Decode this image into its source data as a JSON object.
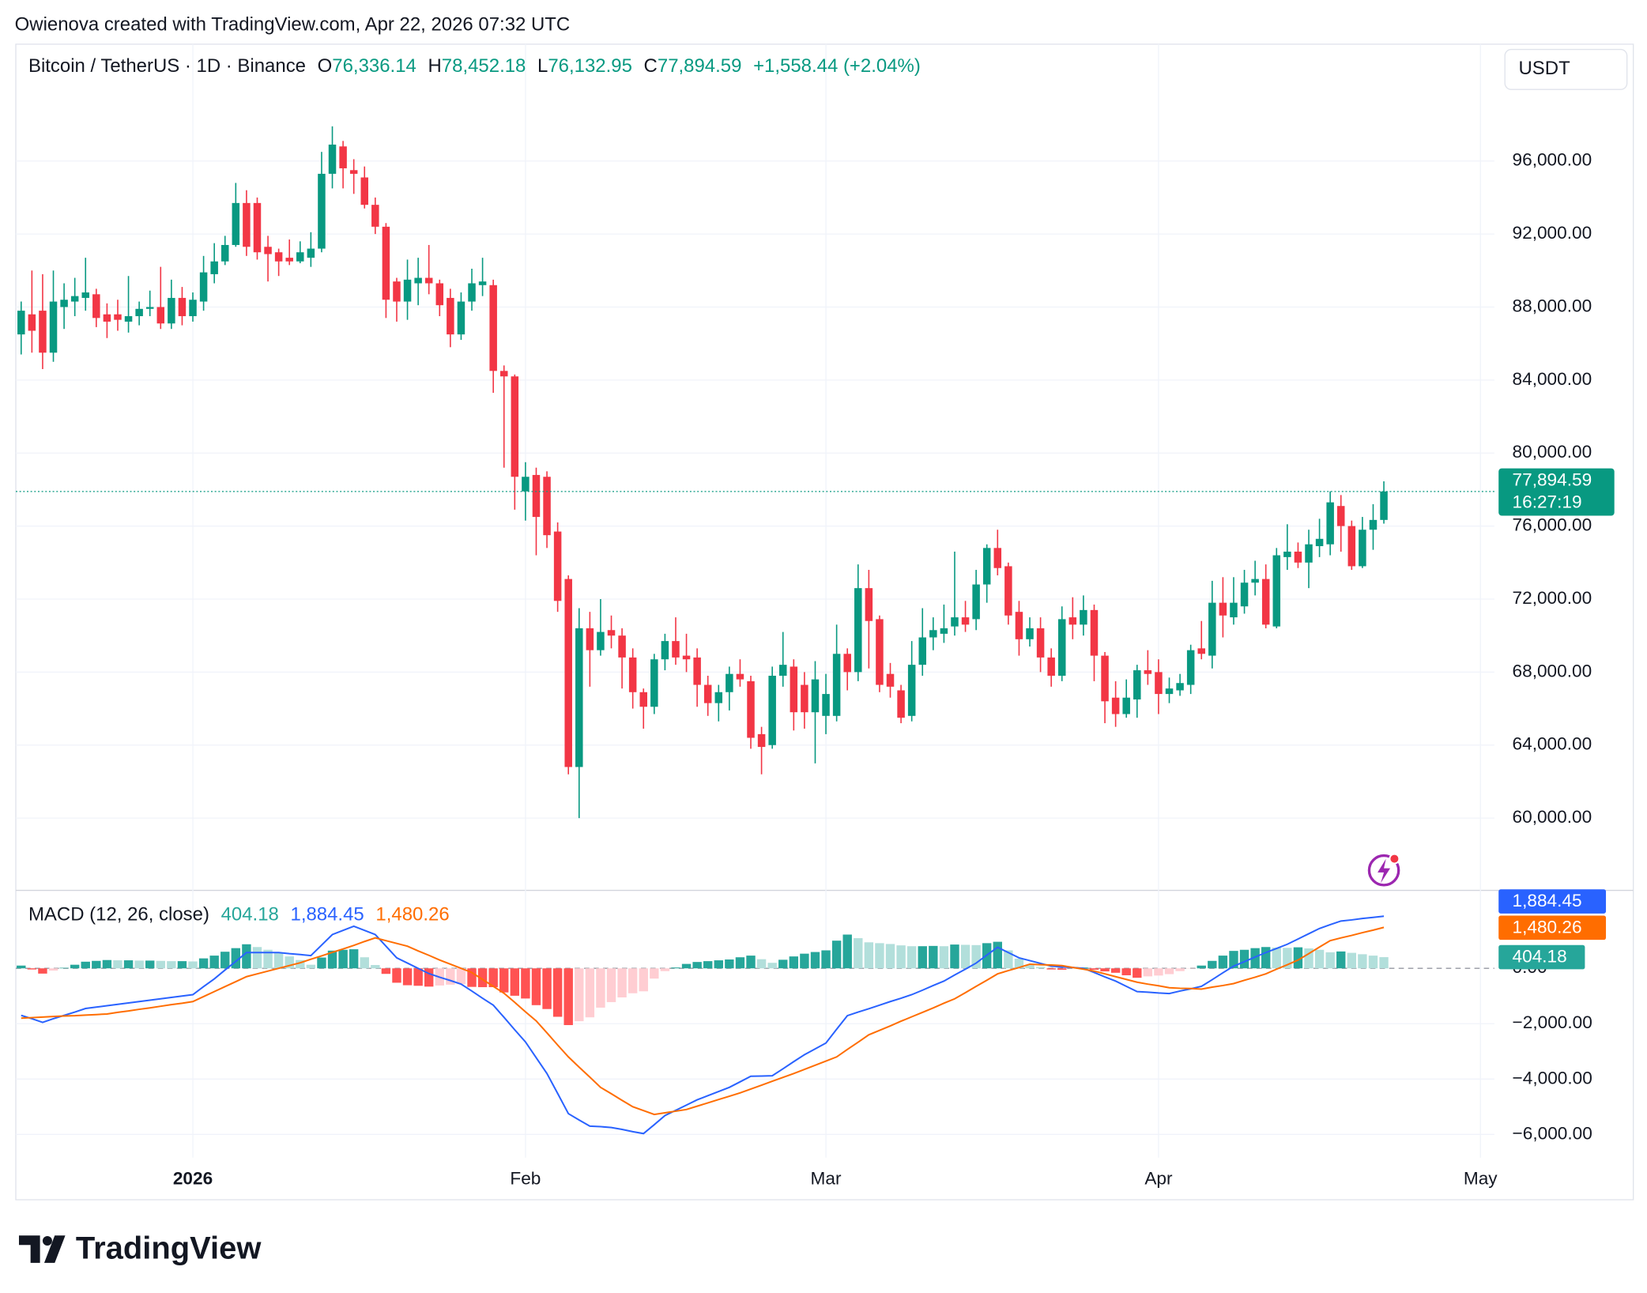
{
  "header": {
    "attribution": "Owienova created with TradingView.com, Apr 22, 2026 07:32 UTC"
  },
  "footer": {
    "logo": "TradingView"
  },
  "chart_data": [
    {
      "type": "candlestick",
      "title": "Bitcoin / TetherUS · 1D · Binance",
      "ohlc_legend": [
        {
          "key": "O",
          "value": "76,336.14"
        },
        {
          "key": "H",
          "value": "78,452.18"
        },
        {
          "key": "L",
          "value": "76,132.95"
        },
        {
          "key": "C",
          "value": "77,894.59"
        }
      ],
      "change_label": "+1,558.44 (+2.04%)",
      "currency": "USDT",
      "last_price_label": "77,894.59",
      "countdown": "16:27:19",
      "up_color": "#089981",
      "down_color": "#f23645",
      "grid": true,
      "xlim": [
        -0.5,
        137.3
      ],
      "xticks": [
        {
          "value": 16,
          "label": "2026",
          "bold": true
        },
        {
          "value": 47,
          "label": "Feb"
        },
        {
          "value": 75,
          "label": "Mar"
        },
        {
          "value": 106,
          "label": "Apr"
        },
        {
          "value": 136,
          "label": "May"
        }
      ],
      "ylim": [
        56100,
        102400
      ],
      "yticks": [
        {
          "value": 60000,
          "label": "60,000.00"
        },
        {
          "value": 64000,
          "label": "64,000.00"
        },
        {
          "value": 68000,
          "label": "68,000.00"
        },
        {
          "value": 72000,
          "label": "72,000.00"
        },
        {
          "value": 76000,
          "label": "76,000.00"
        },
        {
          "value": 80000,
          "label": "80,000.00"
        },
        {
          "value": 84000,
          "label": "84,000.00"
        },
        {
          "value": 88000,
          "label": "88,000.00"
        },
        {
          "value": 92000,
          "label": "92,000.00"
        },
        {
          "value": 96000,
          "label": "96,000.00"
        }
      ],
      "open": [
        86500,
        87600,
        87800,
        85500,
        88000,
        88300,
        88500,
        88700,
        87600,
        87600,
        87200,
        87500,
        87900,
        88000,
        87100,
        88500,
        87500,
        88300,
        89800,
        90500,
        91400,
        93700,
        93700,
        91300,
        91000,
        90700,
        90500,
        90700,
        91200,
        95300,
        96800,
        95500,
        95100,
        93600,
        92400,
        89400,
        88300,
        89300,
        89600,
        89300,
        88500,
        86500,
        88300,
        89200,
        89200,
        84500,
        84200,
        77900,
        78800,
        78700,
        75700,
        73100,
        62800,
        70400,
        69200,
        70300,
        70000,
        68800,
        66900,
        66100,
        68700,
        69700,
        68900,
        68800,
        67300,
        66300,
        66900,
        67900,
        67500,
        64600,
        64000,
        67800,
        68300,
        67300,
        65800,
        65600,
        65600,
        69000,
        68000,
        72600,
        70900,
        67900,
        67000,
        65600,
        68400,
        69900,
        70100,
        70500,
        71000,
        70900,
        72800,
        74800,
        73800,
        71300,
        69800,
        70400,
        68800,
        67800,
        71000,
        70600,
        71400,
        68900,
        66600,
        65700,
        66500,
        68100,
        68000,
        66800,
        67000,
        67300,
        69300,
        68900,
        71800,
        71000,
        71600,
        72900,
        73100,
        70500,
        74300,
        74600,
        74000,
        74900,
        75000,
        77100,
        76000,
        73800,
        75800,
        76336.14
      ],
      "high": [
        88300,
        90000,
        89800,
        90000,
        89300,
        89600,
        90700,
        89000,
        88200,
        88400,
        89700,
        88300,
        88900,
        90200,
        89500,
        89100,
        88800,
        90800,
        91500,
        91900,
        94800,
        94400,
        94000,
        91900,
        91200,
        91700,
        91600,
        92100,
        96500,
        97900,
        97100,
        96100,
        95700,
        94000,
        92600,
        89600,
        90600,
        90700,
        91400,
        89500,
        89000,
        88800,
        90100,
        90700,
        89500,
        84800,
        84300,
        79500,
        79200,
        79000,
        76200,
        73300,
        71500,
        71300,
        72000,
        71100,
        70400,
        69300,
        67100,
        69000,
        70100,
        71000,
        70100,
        69300,
        67800,
        67300,
        68300,
        68700,
        67800,
        65000,
        68300,
        70200,
        68700,
        68000,
        68600,
        67900,
        70600,
        69300,
        73900,
        73600,
        71100,
        68500,
        67300,
        69700,
        71500,
        71000,
        71700,
        74600,
        71900,
        73600,
        75000,
        75800,
        74000,
        71900,
        71000,
        71000,
        69300,
        71600,
        72100,
        72200,
        71700,
        69100,
        67500,
        67600,
        68400,
        69200,
        68700,
        67700,
        67900,
        69500,
        70800,
        73000,
        73200,
        73200,
        73600,
        74100,
        73900,
        74800,
        76100,
        75100,
        75800,
        76400,
        77900,
        77700,
        76300,
        76500,
        77200,
        78452.18
      ],
      "low": [
        85400,
        85500,
        84600,
        85000,
        86800,
        87500,
        87800,
        86900,
        86300,
        86700,
        86600,
        87000,
        87500,
        86800,
        86800,
        87000,
        87200,
        87800,
        89300,
        90300,
        91300,
        90800,
        90600,
        89400,
        89700,
        90300,
        90400,
        90200,
        91000,
        94500,
        94500,
        94200,
        93400,
        92000,
        87400,
        87200,
        87300,
        88100,
        88700,
        87500,
        85800,
        86200,
        87800,
        88600,
        83300,
        79200,
        76900,
        76300,
        74400,
        74800,
        71300,
        62400,
        60000,
        67200,
        68900,
        69300,
        67100,
        66000,
        64900,
        65700,
        68100,
        68400,
        68000,
        66100,
        65600,
        65300,
        65900,
        67200,
        63800,
        62400,
        63800,
        67200,
        64800,
        64900,
        63000,
        64600,
        65300,
        67000,
        67500,
        68200,
        66900,
        66600,
        65200,
        65300,
        67800,
        69200,
        69600,
        70000,
        70200,
        70300,
        71800,
        73300,
        70600,
        68900,
        69400,
        68000,
        67200,
        67500,
        69800,
        70000,
        67500,
        65200,
        65000,
        65500,
        65500,
        67300,
        65700,
        66300,
        66700,
        66800,
        68700,
        68200,
        69900,
        70600,
        71200,
        72200,
        70400,
        70400,
        73600,
        73700,
        72600,
        74300,
        74400,
        74600,
        73600,
        73700,
        74700,
        76132.95
      ],
      "close": [
        87800,
        86700,
        85500,
        88300,
        88400,
        88600,
        88800,
        87400,
        87200,
        87300,
        87500,
        87900,
        88000,
        87100,
        88500,
        87500,
        88400,
        89900,
        90500,
        91400,
        93700,
        91300,
        91000,
        90900,
        90500,
        90500,
        91000,
        91200,
        95300,
        96900,
        95600,
        95300,
        93600,
        92400,
        88400,
        88300,
        89500,
        89600,
        89300,
        88100,
        86500,
        88300,
        89300,
        89400,
        84500,
        84200,
        78700,
        78700,
        76500,
        75500,
        71900,
        62800,
        70400,
        69200,
        70200,
        70000,
        68800,
        66900,
        66100,
        68700,
        69700,
        68800,
        68700,
        67300,
        66300,
        66900,
        67900,
        67600,
        64400,
        63900,
        67800,
        68400,
        65800,
        65800,
        67600,
        66800,
        69000,
        68000,
        72600,
        70800,
        67300,
        67200,
        65500,
        68400,
        69900,
        70300,
        70400,
        71000,
        70600,
        72800,
        74800,
        73700,
        71100,
        69800,
        70400,
        68800,
        67800,
        70900,
        70600,
        71400,
        68900,
        66400,
        65700,
        66600,
        68100,
        67900,
        66800,
        67100,
        67400,
        69200,
        69000,
        71800,
        71100,
        71800,
        72900,
        73100,
        70600,
        74400,
        74600,
        74000,
        75000,
        75300,
        77300,
        76000,
        73800,
        75800,
        76336,
        77894.59
      ]
    },
    {
      "type": "macd",
      "title": "MACD (12, 26, close)",
      "histogram_label": "404.18",
      "macd_label": "1,884.45",
      "signal_label": "1,480.26",
      "macd_color": "#2962ff",
      "signal_color": "#ff6d00",
      "histogram_colors": {
        "rising_above": "#26a69a",
        "falling_above": "#b2dfdb",
        "falling_below": "#ff5252",
        "rising_below": "#ffcdd2"
      },
      "grid": true,
      "ylim": [
        -6840,
        2780
      ],
      "yticks": [
        {
          "value": 0,
          "label": "0.00"
        },
        {
          "value": -2000,
          "label": "−2,000.00"
        },
        {
          "value": -4000,
          "label": "−4,000.00"
        },
        {
          "value": -6000,
          "label": "−6,000.00"
        }
      ],
      "histogram": [
        100,
        -40,
        -190,
        -80,
        20,
        130,
        240,
        270,
        300,
        290,
        290,
        280,
        280,
        270,
        260,
        260,
        250,
        360,
        460,
        600,
        730,
        870,
        770,
        670,
        570,
        430,
        300,
        130,
        390,
        640,
        670,
        690,
        400,
        120,
        -200,
        -520,
        -610,
        -630,
        -660,
        -620,
        -590,
        -570,
        -670,
        -680,
        -680,
        -870,
        -990,
        -1090,
        -1330,
        -1470,
        -1750,
        -2050,
        -1910,
        -1770,
        -1420,
        -1220,
        -1050,
        -900,
        -830,
        -370,
        -100,
        30,
        160,
        230,
        260,
        290,
        320,
        400,
        460,
        330,
        200,
        310,
        430,
        530,
        590,
        650,
        1000,
        1220,
        1090,
        940,
        910,
        880,
        830,
        800,
        800,
        810,
        800,
        860,
        850,
        840,
        910,
        960,
        650,
        350,
        130,
        50,
        -40,
        -50,
        0,
        30,
        -50,
        -110,
        -160,
        -250,
        -340,
        -290,
        -260,
        -210,
        -100,
        -10,
        100,
        270,
        460,
        630,
        670,
        730,
        770,
        750,
        740,
        760,
        720,
        670,
        580,
        610,
        560,
        510,
        460,
        404.18
      ],
      "macd": [
        -1700,
        -1820,
        -1950,
        -1820,
        -1700,
        -1580,
        -1450,
        -1400,
        -1350,
        -1300,
        -1250,
        -1200,
        -1150,
        -1100,
        -1050,
        -1000,
        -950,
        -660,
        -380,
        -60,
        250,
        570,
        570,
        570,
        570,
        530,
        500,
        460,
        840,
        1220,
        1370,
        1520,
        1370,
        1220,
        800,
        380,
        190,
        0,
        -190,
        -320,
        -440,
        -570,
        -820,
        -1080,
        -1330,
        -1770,
        -2220,
        -2660,
        -3230,
        -3800,
        -4520,
        -5250,
        -5480,
        -5700,
        -5720,
        -5750,
        -5820,
        -5900,
        -5970,
        -5650,
        -5320,
        -5130,
        -4940,
        -4750,
        -4600,
        -4450,
        -4300,
        -4100,
        -3900,
        -3890,
        -3880,
        -3630,
        -3370,
        -3120,
        -2910,
        -2700,
        -2200,
        -1710,
        -1580,
        -1460,
        -1330,
        -1200,
        -1080,
        -950,
        -790,
        -620,
        -460,
        -240,
        -30,
        190,
        480,
        760,
        570,
        380,
        280,
        180,
        80,
        50,
        30,
        0,
        -150,
        -310,
        -460,
        -650,
        -840,
        -860,
        -890,
        -910,
        -820,
        -740,
        -650,
        -410,
        -160,
        80,
        240,
        410,
        570,
        720,
        870,
        1060,
        1250,
        1440,
        1580,
        1710,
        1750,
        1800,
        1840,
        1884.45
      ],
      "signal": [
        -1800,
        -1780,
        -1760,
        -1740,
        -1720,
        -1710,
        -1690,
        -1670,
        -1650,
        -1590,
        -1540,
        -1480,
        -1430,
        -1370,
        -1310,
        -1260,
        -1200,
        -1020,
        -840,
        -660,
        -480,
        -300,
        -200,
        -100,
        0,
        100,
        200,
        330,
        450,
        580,
        700,
        830,
        970,
        1100,
        1000,
        900,
        800,
        630,
        470,
        300,
        150,
        0,
        -150,
        -400,
        -650,
        -900,
        -1230,
        -1570,
        -1900,
        -2330,
        -2770,
        -3200,
        -3570,
        -3930,
        -4300,
        -4530,
        -4770,
        -5000,
        -5140,
        -5280,
        -5220,
        -5160,
        -5100,
        -4980,
        -4860,
        -4740,
        -4620,
        -4500,
        -4360,
        -4220,
        -4080,
        -3940,
        -3800,
        -3650,
        -3500,
        -3350,
        -3200,
        -2930,
        -2670,
        -2400,
        -2240,
        -2080,
        -1910,
        -1750,
        -1590,
        -1430,
        -1260,
        -1100,
        -880,
        -650,
        -430,
        -200,
        -80,
        30,
        150,
        130,
        120,
        100,
        30,
        -30,
        -100,
        -200,
        -300,
        -400,
        -500,
        -570,
        -630,
        -700,
        -720,
        -730,
        -750,
        -680,
        -620,
        -550,
        -430,
        -320,
        -200,
        -30,
        130,
        300,
        530,
        770,
        1000,
        1100,
        1190,
        1290,
        1380,
        1480.26
      ]
    }
  ]
}
